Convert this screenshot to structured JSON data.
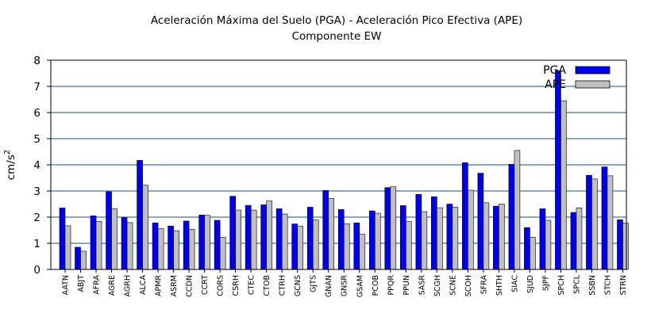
{
  "chart_data": {
    "type": "bar",
    "title": "Aceleración Máxima del Suelo (PGA) -  Aceleración Pico Efectiva (APE)",
    "subtitle": "Componente EW",
    "ylabel": "cm/s",
    "ylabel_superscript": "2",
    "xlabel": "",
    "ylim": [
      0,
      8
    ],
    "yticks": [
      0,
      1,
      2,
      3,
      4,
      5,
      6,
      7,
      8
    ],
    "grid": "horizontal",
    "legend_position": "top-right",
    "categories": [
      "AATN",
      "ABJT",
      "AFRA",
      "AGRE",
      "AGRH",
      "ALCA",
      "APMR",
      "ASRM",
      "CCDN",
      "CCRT",
      "CORS",
      "CSRH",
      "CTEC",
      "CTOB",
      "CTRH",
      "GCNS",
      "GJTS",
      "GNAN",
      "GNSR",
      "GSAM",
      "PCOB",
      "PPQR",
      "PPUN",
      "SASR",
      "SCGH",
      "SCNE",
      "SCOH",
      "SFRA",
      "SHTH",
      "SIAC",
      "SJUD",
      "SJPF",
      "SPCH",
      "SPCL",
      "SSBN",
      "STCH",
      "STRN"
    ],
    "series": [
      {
        "name": "PGA",
        "color": "#0000ee",
        "values": [
          2.35,
          0.85,
          2.05,
          2.97,
          1.98,
          4.17,
          1.78,
          1.66,
          1.85,
          2.08,
          1.88,
          2.8,
          2.45,
          2.47,
          2.32,
          1.74,
          2.38,
          3.02,
          2.29,
          1.78,
          2.24,
          3.13,
          2.44,
          2.87,
          2.78,
          2.5,
          4.08,
          3.68,
          2.42,
          4.02,
          1.6,
          2.32,
          7.6,
          2.18,
          3.6,
          3.92,
          1.9
        ]
      },
      {
        "name": "APE",
        "color": "#c0c0c0",
        "values": [
          1.67,
          0.7,
          1.84,
          2.32,
          1.79,
          3.22,
          1.56,
          1.48,
          1.53,
          2.07,
          1.23,
          2.27,
          2.27,
          2.62,
          2.12,
          1.65,
          1.89,
          2.71,
          1.75,
          1.35,
          2.15,
          3.16,
          1.83,
          2.21,
          2.36,
          2.38,
          3.03,
          2.55,
          2.5,
          4.55,
          1.23,
          1.88,
          6.45,
          2.35,
          3.46,
          3.58,
          1.77
        ]
      }
    ]
  }
}
